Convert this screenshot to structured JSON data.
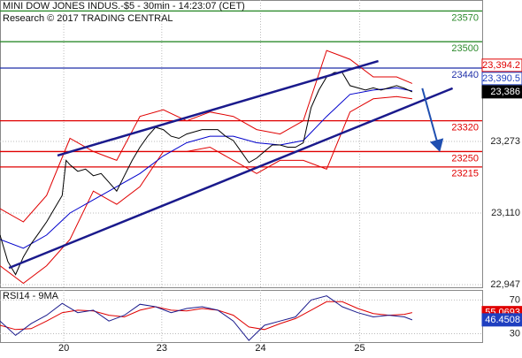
{
  "chart_data": [
    {
      "type": "line",
      "title": "MINI DOW JONES INDUS.-$5 - 30min - 14:23:07 (CET)",
      "subtitle": "Research © 2017 TRADING CENTRAL",
      "xlim": [
        0,
        124
      ],
      "ylim": [
        22941,
        23595
      ],
      "yticks": [
        {
          "value": 22947,
          "label": "22,947"
        },
        {
          "value": 23110,
          "label": "23,110"
        },
        {
          "value": 23273,
          "label": "23,273"
        }
      ],
      "grid": true,
      "series": [
        {
          "color": "#e00000",
          "x": [
            0,
            6,
            12,
            18,
            24,
            30,
            36,
            42,
            48,
            54,
            60,
            66,
            72,
            78,
            84,
            90,
            96,
            102,
            106
          ],
          "values": [
            23120,
            23090,
            23150,
            23280,
            23250,
            23230,
            23330,
            23345,
            23320,
            23340,
            23330,
            23300,
            23290,
            23320,
            23480,
            23460,
            23420,
            23420,
            23405
          ]
        },
        {
          "color": "#e00000",
          "x": [
            0,
            6,
            12,
            18,
            24,
            30,
            36,
            42,
            48,
            54,
            60,
            66,
            72,
            78,
            84,
            90,
            96,
            102,
            106
          ],
          "values": [
            22990,
            22950,
            22990,
            23050,
            23160,
            23130,
            23170,
            23250,
            23250,
            23260,
            23230,
            23200,
            23230,
            23230,
            23210,
            23340,
            23370,
            23375,
            23370
          ]
        },
        {
          "color": "#0000cc",
          "x": [
            0,
            6,
            12,
            18,
            24,
            30,
            36,
            42,
            48,
            54,
            60,
            66,
            72,
            78,
            84,
            90,
            96,
            102,
            106
          ],
          "values": [
            23050,
            23030,
            23060,
            23110,
            23140,
            23170,
            23200,
            23240,
            23270,
            23285,
            23285,
            23270,
            23265,
            23275,
            23330,
            23380,
            23390,
            23395,
            23388
          ]
        },
        {
          "color": "#000000",
          "x": [
            0,
            2,
            4,
            6,
            8,
            10,
            12,
            14,
            16,
            17,
            18,
            20,
            22,
            24,
            26,
            28,
            30,
            32,
            34,
            36,
            38,
            40,
            42,
            44,
            46,
            48,
            50,
            52,
            54,
            56,
            58,
            60,
            62,
            64,
            66,
            68,
            70,
            72,
            74,
            76,
            78,
            80,
            82,
            84,
            86,
            88,
            90,
            92,
            94,
            96,
            98,
            100,
            102,
            104,
            106
          ],
          "values": [
            23060,
            23000,
            22970,
            23010,
            23040,
            23065,
            23090,
            23120,
            23150,
            23230,
            23220,
            23205,
            23210,
            23195,
            23200,
            23180,
            23160,
            23195,
            23230,
            23260,
            23285,
            23305,
            23300,
            23285,
            23280,
            23290,
            23295,
            23300,
            23300,
            23300,
            23285,
            23275,
            23250,
            23225,
            23235,
            23250,
            23265,
            23265,
            23260,
            23260,
            23270,
            23350,
            23390,
            23420,
            23430,
            23430,
            23400,
            23395,
            23390,
            23395,
            23390,
            23395,
            23400,
            23394,
            23386
          ]
        }
      ],
      "levels": [
        {
          "value": 23570,
          "color": "#2e8b2e"
        },
        {
          "value": 23500,
          "color": "#2e8b2e"
        },
        {
          "value": 23440,
          "color": "#1f2fa8"
        },
        {
          "value": 23320,
          "color": "#e00000"
        },
        {
          "value": 23250,
          "color": "#e00000"
        },
        {
          "value": 23215,
          "color": "#e00000"
        }
      ],
      "trendlines": [
        {
          "color": "#1a1a8c",
          "x": [
            14.8,
            97.3
          ],
          "values": [
            23241,
            23456
          ]
        },
        {
          "color": "#1a1a8c",
          "x": [
            2.3,
            116.4
          ],
          "values": [
            22985,
            23394
          ]
        }
      ],
      "arrow": {
        "color": "#1f4fb0",
        "x": [
          108.6,
          113
        ],
        "values": [
          23394,
          23253
        ]
      },
      "tags": [
        {
          "value": 23394.2,
          "label": "23,394.2",
          "color": "#e00000",
          "style": "outline"
        },
        {
          "value": 23390.5,
          "label": "23,390.5",
          "color": "#1f3fc0",
          "style": "outline"
        },
        {
          "value": 23386,
          "label": "23,386",
          "color": "#000000",
          "style": "solid"
        }
      ]
    },
    {
      "type": "line",
      "title": "RSI14 - 9MA",
      "xlim": [
        0,
        124
      ],
      "ylim": [
        19,
        82
      ],
      "yticks": [
        30,
        70
      ],
      "xticks": [
        {
          "value": 16.4,
          "label": "20"
        },
        {
          "value": 41.6,
          "label": "23"
        },
        {
          "value": 67,
          "label": "24"
        },
        {
          "value": 92.5,
          "label": "25"
        }
      ],
      "grid": true,
      "series": [
        {
          "color": "#e00000",
          "x": [
            0,
            4,
            8,
            12,
            16,
            20,
            24,
            28,
            32,
            36,
            40,
            44,
            48,
            52,
            56,
            60,
            64,
            68,
            72,
            76,
            80,
            84,
            88,
            92,
            96,
            100,
            104,
            106
          ],
          "values": [
            40,
            35,
            36,
            45,
            55,
            58,
            57,
            52,
            50,
            58,
            62,
            58,
            57,
            60,
            58,
            52,
            38,
            35,
            42,
            48,
            58,
            68,
            68,
            60,
            54,
            52,
            53,
            55.0693
          ]
        },
        {
          "color": "#1a1a8c",
          "x": [
            0,
            4,
            8,
            12,
            16,
            20,
            24,
            28,
            32,
            36,
            40,
            44,
            48,
            52,
            56,
            60,
            64,
            68,
            72,
            76,
            80,
            84,
            88,
            92,
            96,
            100,
            104,
            106
          ],
          "values": [
            45,
            28,
            42,
            52,
            66,
            55,
            58,
            45,
            52,
            65,
            62,
            55,
            60,
            62,
            58,
            45,
            22,
            40,
            45,
            50,
            70,
            75,
            62,
            55,
            50,
            52,
            50,
            46.4508
          ]
        }
      ],
      "tags": [
        {
          "value": 55.0693,
          "color": "#e00000",
          "style": "solid"
        },
        {
          "value": 46.4508,
          "color": "#1f3fc0",
          "style": "solid"
        }
      ]
    }
  ]
}
